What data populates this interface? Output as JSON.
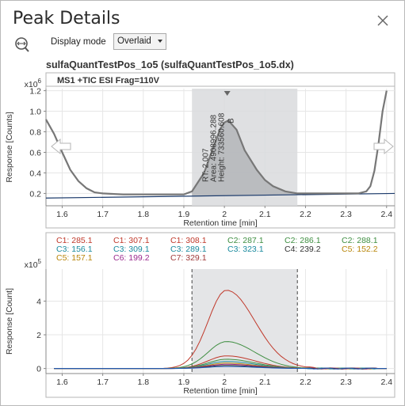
{
  "window": {
    "title": "Peak Details"
  },
  "toolbar": {
    "display_mode_label": "Display mode",
    "display_mode_value": "Overlaid"
  },
  "file_title": "sulfaQuantTestPos_1o5 (sulfaQuantTestPos_1o5.dx)",
  "chart_data": [
    {
      "type": "line",
      "header": "MS1  +TIC ESI Frag=110V",
      "exponent_label": "x10",
      "exponent_power": "6",
      "ylabel": "Response [Counts]",
      "xlabel": "Retention time [min]",
      "xlim": [
        1.56,
        2.42
      ],
      "ylim": [
        0.08,
        1.22
      ],
      "xticks": [
        "1.6",
        "1.7",
        "1.8",
        "1.9",
        "2",
        "2.1",
        "2.2",
        "2.3",
        "2.4"
      ],
      "yticks": [
        "0.2",
        "0.4",
        "0.6",
        "0.8",
        "1.0",
        "1.2"
      ],
      "peak_region": [
        1.92,
        2.18
      ],
      "peak_apex": 2.007,
      "peak_annotations": [
        "RT: 2.007",
        "Area: 4908996.288",
        "Height: 733560.608",
        "B"
      ],
      "series": [
        {
          "x": [
            1.56,
            1.58,
            1.6,
            1.62,
            1.64,
            1.66,
            1.68,
            1.7,
            1.75,
            1.8,
            1.85,
            1.9,
            1.92,
            1.95,
            1.97,
            1.99,
            2.0,
            2.01,
            2.03,
            2.05,
            2.08,
            2.1,
            2.12,
            2.15,
            2.18,
            2.2,
            2.25,
            2.3,
            2.33,
            2.35,
            2.36,
            2.37,
            2.38,
            2.39,
            2.4
          ],
          "y": [
            0.92,
            0.78,
            0.6,
            0.43,
            0.32,
            0.25,
            0.21,
            0.2,
            0.19,
            0.19,
            0.19,
            0.19,
            0.22,
            0.4,
            0.62,
            0.83,
            0.89,
            0.91,
            0.82,
            0.62,
            0.43,
            0.33,
            0.27,
            0.22,
            0.2,
            0.2,
            0.2,
            0.2,
            0.2,
            0.22,
            0.27,
            0.42,
            0.68,
            1.0,
            1.2
          ]
        },
        {
          "x": [
            1.56,
            2.42
          ],
          "y": [
            0.155,
            0.2
          ]
        }
      ]
    },
    {
      "type": "line",
      "exponent_label": "x10",
      "exponent_power": "5",
      "ylabel": "Response [Count]",
      "xlabel": "Retention time [min]",
      "xlim": [
        1.56,
        2.42
      ],
      "ylim": [
        -0.3,
        5.9
      ],
      "xticks": [
        "1.6",
        "1.7",
        "1.8",
        "1.9",
        "2",
        "2.1",
        "2.2",
        "2.3",
        "2.4"
      ],
      "yticks": [
        "0",
        "2",
        "4"
      ],
      "peak_region": [
        1.92,
        2.18
      ],
      "legend": [
        {
          "label": "C1: 285.1",
          "color": "#c0392b"
        },
        {
          "label": "C1: 307.1",
          "color": "#c0392b"
        },
        {
          "label": "C1: 308.1",
          "color": "#c0392b"
        },
        {
          "label": "C2: 287.1",
          "color": "#3e8e41"
        },
        {
          "label": "C2: 286.1",
          "color": "#3e8e41"
        },
        {
          "label": "C2: 288.1",
          "color": "#3e8e41"
        },
        {
          "label": "C3: 156.1",
          "color": "#1a8a9e"
        },
        {
          "label": "C3: 309.1",
          "color": "#1a8a9e"
        },
        {
          "label": "C3: 289.1",
          "color": "#1a8a9e"
        },
        {
          "label": "C3: 323.1",
          "color": "#1a8a9e"
        },
        {
          "label": "C4: 239.2",
          "color": "#333333"
        },
        {
          "label": "C5: 152.2",
          "color": "#b8860b"
        },
        {
          "label": "C5: 157.1",
          "color": "#b8860b"
        },
        {
          "label": "C6: 199.2",
          "color": "#9b2a8f"
        },
        {
          "label": "C7: 329.1",
          "color": "#a03a3a"
        }
      ],
      "series": [
        {
          "color": "#c0392b",
          "peak": 4.65
        },
        {
          "color": "#3e8e41",
          "peak": 1.6
        },
        {
          "color": "#c0392b",
          "peak": 0.75
        },
        {
          "color": "#3e8e41",
          "peak": 0.55
        },
        {
          "color": "#1a8a9e",
          "peak": 0.42
        },
        {
          "color": "#b8860b",
          "peak": 0.32
        },
        {
          "color": "#9b2a8f",
          "peak": 0.25
        },
        {
          "color": "#333333",
          "peak": 0.18
        },
        {
          "color": "#1f5fbf",
          "peak": 0.12
        }
      ]
    }
  ]
}
